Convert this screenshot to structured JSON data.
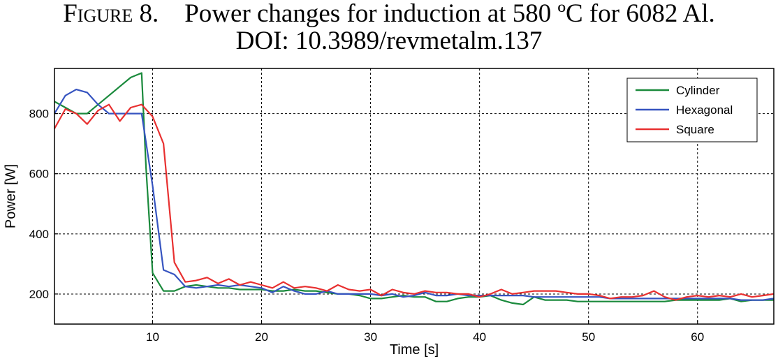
{
  "caption": {
    "figure_label": "Figure 8.",
    "title": "Power changes for induction at 580 ºC for 6082 Al.",
    "doi": "DOI: 10.3989/revmetalm.137"
  },
  "chart_data": {
    "type": "line",
    "title": "",
    "xlabel": "Time [s]",
    "ylabel": "Power [W]",
    "xlim": [
      1,
      67
    ],
    "ylim": [
      100,
      950
    ],
    "xticks": [
      10,
      20,
      30,
      40,
      50,
      60
    ],
    "yticks": [
      200,
      400,
      600,
      800
    ],
    "grid": true,
    "legend_position": "top-right",
    "series": [
      {
        "name": "Cylinder",
        "color": "#1a8a3c",
        "x": [
          1,
          2,
          3,
          4,
          5,
          6,
          7,
          8,
          9,
          9.4,
          10,
          11,
          12,
          13,
          14,
          15,
          16,
          17,
          18,
          19,
          20,
          21,
          22,
          23,
          24,
          25,
          26,
          27,
          28,
          29,
          30,
          31,
          32,
          33,
          34,
          35,
          36,
          37,
          38,
          39,
          40,
          41,
          42,
          43,
          44,
          45,
          46,
          47,
          48,
          49,
          50,
          51,
          52,
          53,
          54,
          55,
          56,
          57,
          58,
          59,
          60,
          61,
          62,
          63,
          64,
          65,
          66,
          67
        ],
        "y": [
          840,
          820,
          800,
          800,
          830,
          860,
          890,
          920,
          935,
          620,
          270,
          210,
          210,
          225,
          230,
          225,
          220,
          220,
          215,
          215,
          215,
          210,
          210,
          215,
          210,
          210,
          205,
          200,
          200,
          195,
          185,
          185,
          190,
          195,
          190,
          190,
          175,
          175,
          185,
          190,
          190,
          195,
          180,
          170,
          165,
          190,
          180,
          180,
          180,
          175,
          175,
          175,
          175,
          175,
          175,
          175,
          175,
          175,
          180,
          180,
          180,
          180,
          180,
          185,
          175,
          180,
          180,
          180
        ]
      },
      {
        "name": "Hexagonal",
        "color": "#3654c0",
        "x": [
          1,
          2,
          3,
          4,
          5,
          6,
          7,
          8,
          9,
          10,
          11,
          12,
          13,
          14,
          15,
          16,
          17,
          18,
          19,
          20,
          21,
          22,
          23,
          24,
          25,
          26,
          27,
          28,
          29,
          30,
          31,
          32,
          33,
          34,
          35,
          36,
          37,
          38,
          39,
          40,
          41,
          42,
          43,
          44,
          45,
          46,
          47,
          48,
          49,
          50,
          51,
          52,
          53,
          54,
          55,
          56,
          57,
          58,
          59,
          60,
          61,
          62,
          63,
          64,
          65,
          66,
          67
        ],
        "y": [
          800,
          860,
          880,
          870,
          830,
          800,
          800,
          800,
          800,
          560,
          280,
          265,
          225,
          220,
          225,
          230,
          225,
          230,
          225,
          220,
          205,
          225,
          210,
          200,
          200,
          210,
          200,
          200,
          200,
          200,
          195,
          200,
          190,
          195,
          205,
          195,
          195,
          200,
          195,
          195,
          195,
          195,
          195,
          195,
          190,
          190,
          190,
          190,
          190,
          190,
          190,
          185,
          185,
          185,
          185,
          185,
          185,
          185,
          185,
          185,
          185,
          185,
          185,
          180,
          180,
          180,
          185
        ]
      },
      {
        "name": "Square",
        "color": "#e83030",
        "x": [
          1,
          2,
          3,
          4,
          5,
          6,
          7,
          8,
          9,
          10,
          11,
          12,
          13,
          14,
          15,
          16,
          17,
          18,
          19,
          20,
          21,
          22,
          23,
          24,
          25,
          26,
          27,
          28,
          29,
          30,
          31,
          32,
          33,
          34,
          35,
          36,
          37,
          38,
          39,
          40,
          41,
          42,
          43,
          44,
          45,
          46,
          47,
          48,
          49,
          50,
          51,
          52,
          53,
          54,
          55,
          56,
          57,
          58,
          59,
          60,
          61,
          62,
          63,
          64,
          65,
          66,
          67
        ],
        "y": [
          750,
          815,
          800,
          765,
          810,
          830,
          775,
          820,
          830,
          790,
          700,
          305,
          240,
          245,
          255,
          235,
          250,
          230,
          240,
          230,
          220,
          240,
          220,
          225,
          220,
          210,
          230,
          215,
          210,
          215,
          195,
          215,
          205,
          200,
          210,
          205,
          205,
          200,
          200,
          190,
          200,
          215,
          200,
          205,
          210,
          210,
          210,
          205,
          200,
          200,
          195,
          185,
          190,
          190,
          195,
          210,
          190,
          180,
          190,
          195,
          190,
          195,
          190,
          200,
          190,
          195,
          200
        ]
      }
    ]
  }
}
